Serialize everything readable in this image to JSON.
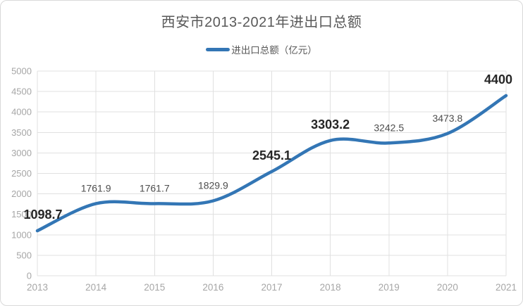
{
  "chart_data": {
    "type": "line",
    "title": "西安市2013-2021年进出口总额",
    "xlabel": "",
    "ylabel": "",
    "categories": [
      "2013",
      "2014",
      "2015",
      "2016",
      "2017",
      "2018",
      "2019",
      "2020",
      "2021"
    ],
    "series": [
      {
        "name": "进出口总额（亿元）",
        "values": [
          1098.7,
          1761.9,
          1761.7,
          1829.9,
          2545.1,
          3303.2,
          3242.5,
          3473.8,
          4400
        ],
        "color": "#3376B5"
      }
    ],
    "data_labels": [
      "1098.7",
      "1761.9",
      "1761.7",
      "1829.9",
      "2545.1",
      "3303.2",
      "3242.5",
      "3473.8",
      "4400"
    ],
    "bold_labels": [
      true,
      false,
      false,
      false,
      true,
      true,
      false,
      false,
      true
    ],
    "ylim": [
      0,
      5000
    ],
    "ytick_step": 500,
    "grid": true,
    "smooth_line": true,
    "legend_position": "top"
  },
  "colors": {
    "line": "#3376B5",
    "grid": "#E0E0E0",
    "axis_tick_text": "#A6A6A6",
    "title_text": "#595959",
    "legend_text": "#595959",
    "data_label": "#4D4D4D",
    "data_label_bold": "#262626",
    "border": "#D9D9D9",
    "background": "#FFFFFF"
  }
}
